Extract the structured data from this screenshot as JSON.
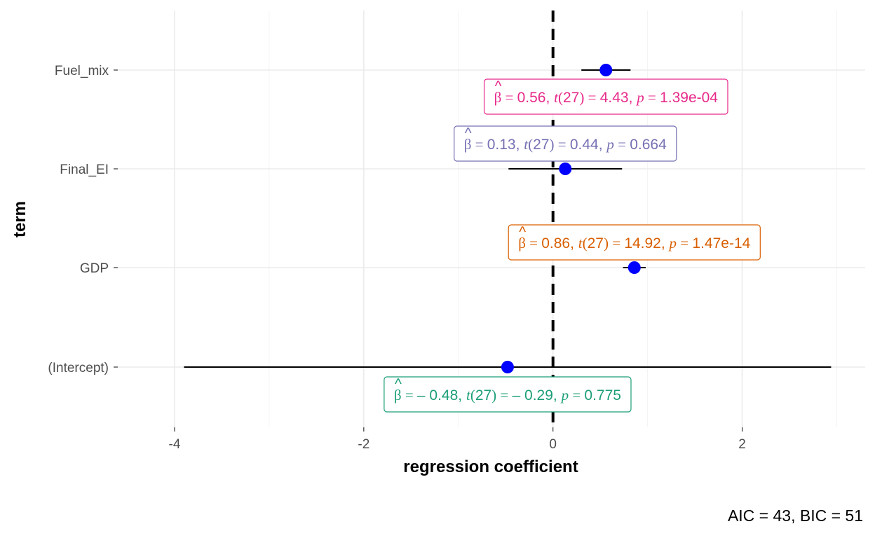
{
  "chart_data": {
    "type": "coefficient-plot",
    "title": "",
    "xlabel": "regression coefficient",
    "ylabel": "term",
    "xlim": [
      -4.6,
      3.3
    ],
    "xticks": [
      -4,
      -2,
      0,
      2
    ],
    "tick_labels": [
      "-4",
      "-2",
      "0",
      "2"
    ],
    "grid": true,
    "reference_line": 0,
    "terms": [
      {
        "term": "Fuel_mix",
        "estimate": 0.56,
        "conf_low": 0.3,
        "conf_high": 0.82,
        "label_color": "#e7298a",
        "label": {
          "beta": "0.56",
          "df": "27",
          "t": "4.43",
          "p": "1.39e-04"
        }
      },
      {
        "term": "Final_EI",
        "estimate": 0.13,
        "conf_low": -0.47,
        "conf_high": 0.73,
        "label_color": "#7570b3",
        "label": {
          "beta": "0.13",
          "df": "27",
          "t": "0.44",
          "p": "0.664"
        }
      },
      {
        "term": "GDP",
        "estimate": 0.86,
        "conf_low": 0.74,
        "conf_high": 0.98,
        "label_color": "#d95f02",
        "label": {
          "beta": "0.86",
          "df": "27",
          "t": "14.92",
          "p": "1.47e-14"
        }
      },
      {
        "term": "(Intercept)",
        "estimate": -0.48,
        "conf_low": -3.9,
        "conf_high": 2.94,
        "label_color": "#1b9e77",
        "label": {
          "beta": "– 0.48",
          "df": "27",
          "t": "– 0.29",
          "p": "0.775"
        }
      }
    ],
    "caption": "AIC = 43, BIC = 51",
    "point_color": "#0000ff"
  }
}
